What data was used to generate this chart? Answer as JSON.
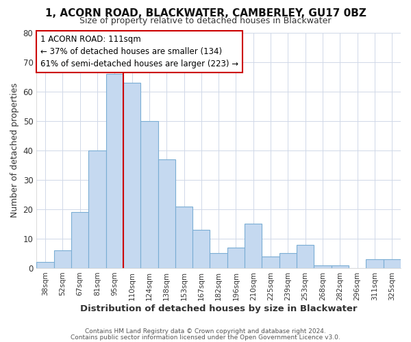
{
  "title": "1, ACORN ROAD, BLACKWATER, CAMBERLEY, GU17 0BZ",
  "subtitle": "Size of property relative to detached houses in Blackwater",
  "xlabel": "Distribution of detached houses by size in Blackwater",
  "ylabel": "Number of detached properties",
  "bar_labels": [
    "38sqm",
    "52sqm",
    "67sqm",
    "81sqm",
    "95sqm",
    "110sqm",
    "124sqm",
    "138sqm",
    "153sqm",
    "167sqm",
    "182sqm",
    "196sqm",
    "210sqm",
    "225sqm",
    "239sqm",
    "253sqm",
    "268sqm",
    "282sqm",
    "296sqm",
    "311sqm",
    "325sqm"
  ],
  "bar_values": [
    2,
    6,
    19,
    40,
    66,
    63,
    50,
    37,
    21,
    13,
    5,
    7,
    15,
    4,
    5,
    8,
    1,
    1,
    0,
    3,
    3
  ],
  "bar_color": "#c5d9f0",
  "bar_edge_color": "#7aadd4",
  "vline_x_idx": 5,
  "vline_color": "#cc0000",
  "annotation_title": "1 ACORN ROAD: 111sqm",
  "annotation_line1": "← 37% of detached houses are smaller (134)",
  "annotation_line2": "61% of semi-detached houses are larger (223) →",
  "annotation_box_color": "#ffffff",
  "annotation_box_edge": "#cc0000",
  "ylim": [
    0,
    80
  ],
  "yticks": [
    0,
    10,
    20,
    30,
    40,
    50,
    60,
    70,
    80
  ],
  "footer1": "Contains HM Land Registry data © Crown copyright and database right 2024.",
  "footer2": "Contains public sector information licensed under the Open Government Licence v3.0."
}
